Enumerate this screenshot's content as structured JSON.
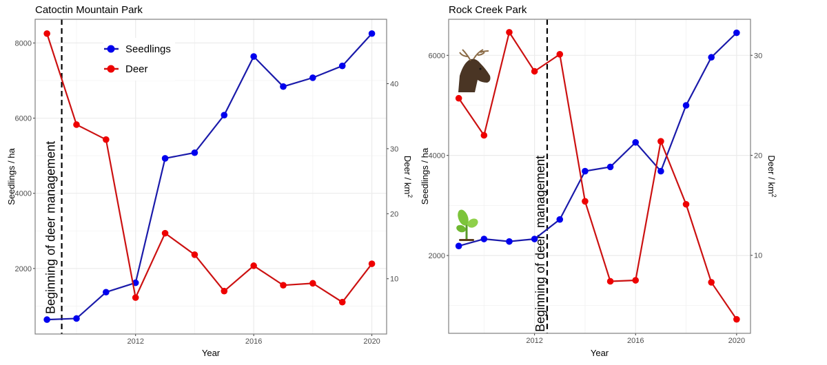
{
  "chart_data": [
    {
      "type": "line",
      "title": "Catoctin Mountain Park",
      "xlabel": "Year",
      "ylabel": "Seedlings / ha",
      "y2label": "Deer / km",
      "y2label_sup": "2",
      "x": [
        2009,
        2010,
        2011,
        2012,
        2013,
        2014,
        2015,
        2016,
        2017,
        2018,
        2019,
        2020
      ],
      "x_ticks": [
        "2012",
        "2016",
        "2020"
      ],
      "y_ticks": [
        "2000",
        "4000",
        "6000",
        "8000"
      ],
      "y2_ticks": [
        "10",
        "20",
        "30",
        "40"
      ],
      "xlim": [
        2008.6,
        2020.5
      ],
      "ylim": [
        257,
        8630
      ],
      "y2lim": [
        1.5,
        49.9
      ],
      "grid": true,
      "legend": "top-left",
      "series": [
        {
          "name": "Seedlings",
          "axis": "left",
          "color": "#0000ee",
          "values": [
            640,
            670,
            1370,
            1620,
            4930,
            5080,
            6080,
            7640,
            6840,
            7075,
            7390,
            8250
          ]
        },
        {
          "name": "Deer",
          "axis": "right",
          "color": "#ee0000",
          "values": [
            47.7,
            33.7,
            31.4,
            7.1,
            17.0,
            13.7,
            8.1,
            12.0,
            9.0,
            9.3,
            6.4,
            12.3
          ]
        }
      ],
      "annotation": {
        "text": "Beginning of deer management",
        "x": 2009.5
      }
    },
    {
      "type": "line",
      "title": "Rock Creek Park",
      "xlabel": "Year",
      "ylabel": "Seedlings / ha",
      "y2label": "Deer / km",
      "y2label_sup": "2",
      "x": [
        2009,
        2010,
        2011,
        2012,
        2013,
        2014,
        2015,
        2016,
        2017,
        2018,
        2019,
        2020
      ],
      "x_ticks": [
        "2012",
        "2016",
        "2020"
      ],
      "y_ticks": [
        "2000",
        "4000",
        "6000"
      ],
      "y2_ticks": [
        "10",
        "20",
        "30"
      ],
      "xlim": [
        2008.6,
        2020.55
      ],
      "ylim": [
        445,
        6720
      ],
      "y2lim": [
        2.2,
        33.6
      ],
      "grid": true,
      "series": [
        {
          "axis": "left",
          "color": "#0000ee",
          "values": [
            2190,
            2330,
            2280,
            2330,
            2720,
            3685,
            3770,
            4260,
            3685,
            5000,
            5960,
            6450
          ]
        },
        {
          "axis": "right",
          "color": "#ee0000",
          "values": [
            25.7,
            22.0,
            32.3,
            28.4,
            30.1,
            15.4,
            7.4,
            7.5,
            21.4,
            15.1,
            7.3,
            3.6
          ]
        }
      ],
      "annotation": {
        "text": "Beginning of deer  management",
        "x": 2012.5
      },
      "icons": [
        "deer-head-icon",
        "seedling-icon"
      ]
    }
  ]
}
